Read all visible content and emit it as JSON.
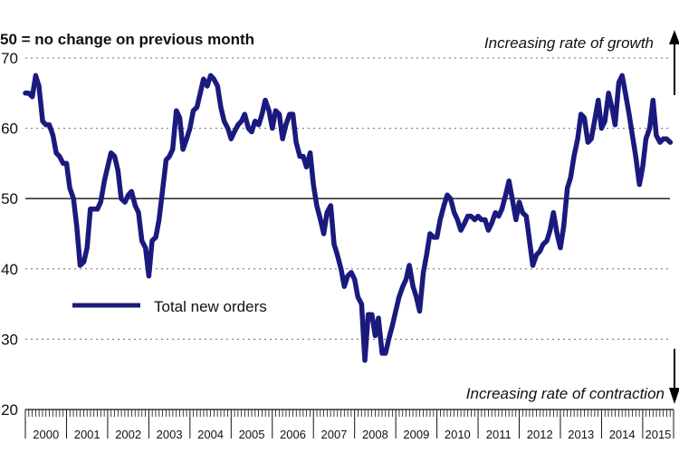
{
  "chart_data": {
    "type": "line",
    "subtitle": "50 = no change on previous month",
    "annotation_top": "Increasing rate of growth",
    "annotation_bottom": "Increasing rate of contraction",
    "ylim": [
      20,
      70
    ],
    "yticks": [
      "20",
      "30",
      "40",
      "50",
      "60",
      "70"
    ],
    "reference_line": 50,
    "xlim": [
      2000.0,
      2015.75
    ],
    "xtick_labels": [
      "2000",
      "2001",
      "2002",
      "2003",
      "2004",
      "2005",
      "2006",
      "2007",
      "2008",
      "2009",
      "2010",
      "2011",
      "2012",
      "2013",
      "2014",
      "2015"
    ],
    "grid": "horizontal dotted",
    "legend_position": "lower-left",
    "series": [
      {
        "name": "Total new orders",
        "color": "#1a1a7e",
        "x": [
          2000.0,
          2000.08,
          2000.17,
          2000.25,
          2000.33,
          2000.42,
          2000.5,
          2000.58,
          2000.67,
          2000.75,
          2000.83,
          2000.92,
          2001.0,
          2001.08,
          2001.17,
          2001.25,
          2001.33,
          2001.42,
          2001.5,
          2001.58,
          2001.67,
          2001.75,
          2001.83,
          2001.92,
          2002.0,
          2002.08,
          2002.17,
          2002.25,
          2002.33,
          2002.42,
          2002.5,
          2002.58,
          2002.67,
          2002.75,
          2002.83,
          2002.92,
          2003.0,
          2003.08,
          2003.17,
          2003.25,
          2003.33,
          2003.42,
          2003.5,
          2003.58,
          2003.67,
          2003.75,
          2003.83,
          2003.92,
          2004.0,
          2004.08,
          2004.17,
          2004.25,
          2004.33,
          2004.42,
          2004.5,
          2004.58,
          2004.67,
          2004.75,
          2004.83,
          2004.92,
          2005.0,
          2005.08,
          2005.17,
          2005.25,
          2005.33,
          2005.42,
          2005.5,
          2005.58,
          2005.67,
          2005.75,
          2005.83,
          2005.92,
          2006.0,
          2006.08,
          2006.17,
          2006.25,
          2006.33,
          2006.42,
          2006.5,
          2006.58,
          2006.67,
          2006.75,
          2006.83,
          2006.92,
          2007.0,
          2007.08,
          2007.17,
          2007.25,
          2007.33,
          2007.42,
          2007.5,
          2007.58,
          2007.67,
          2007.75,
          2007.83,
          2007.92,
          2008.0,
          2008.08,
          2008.17,
          2008.25,
          2008.33,
          2008.42,
          2008.5,
          2008.58,
          2008.67,
          2008.75,
          2008.83,
          2008.92,
          2009.0,
          2009.08,
          2009.17,
          2009.25,
          2009.33,
          2009.42,
          2009.5,
          2009.58,
          2009.67,
          2009.75,
          2009.83,
          2009.92,
          2010.0,
          2010.08,
          2010.17,
          2010.25,
          2010.33,
          2010.42,
          2010.5,
          2010.58,
          2010.67,
          2010.75,
          2010.83,
          2010.92,
          2011.0,
          2011.08,
          2011.17,
          2011.25,
          2011.33,
          2011.42,
          2011.5,
          2011.58,
          2011.67,
          2011.75,
          2011.83,
          2011.92,
          2012.0,
          2012.08,
          2012.17,
          2012.25,
          2012.33,
          2012.42,
          2012.5,
          2012.58,
          2012.67,
          2012.75,
          2012.83,
          2012.92,
          2013.0,
          2013.08,
          2013.17,
          2013.25,
          2013.33,
          2013.42,
          2013.5,
          2013.58,
          2013.67,
          2013.75,
          2013.83,
          2013.92,
          2014.0,
          2014.08,
          2014.17,
          2014.25,
          2014.33,
          2014.42,
          2014.5,
          2014.58,
          2014.67,
          2014.75,
          2014.83,
          2014.92,
          2015.0,
          2015.08,
          2015.17,
          2015.25,
          2015.33,
          2015.42,
          2015.5,
          2015.58,
          2015.67
        ],
        "values": [
          65,
          65,
          64.5,
          67.5,
          66,
          61,
          60.5,
          60.5,
          59,
          56.5,
          56,
          55,
          55,
          51.5,
          50,
          46,
          40.5,
          41,
          43,
          48.5,
          48.5,
          48.5,
          49.5,
          52.5,
          54.5,
          56.5,
          56,
          54,
          50,
          49.5,
          50.5,
          51,
          49,
          48,
          44,
          43,
          39,
          44,
          44.5,
          47,
          51,
          55.5,
          56,
          57,
          62.5,
          61.5,
          57,
          58.5,
          60,
          62.5,
          63,
          65,
          67,
          66,
          67.5,
          67,
          66,
          63,
          61,
          60,
          58.5,
          59.5,
          60.5,
          61,
          62,
          60,
          59.5,
          61,
          60.5,
          62,
          64,
          62.5,
          60,
          62.5,
          62,
          58.5,
          60.5,
          62,
          62,
          58,
          56,
          56,
          54.5,
          56.5,
          52,
          49,
          47,
          45,
          48,
          49,
          43.5,
          42,
          40,
          37.5,
          39,
          39.5,
          38.5,
          36,
          35,
          27,
          33.5,
          33.5,
          30.5,
          33,
          28,
          28,
          30,
          32,
          34,
          36,
          37.5,
          38.5,
          40.5,
          37.5,
          36,
          34,
          39.5,
          42,
          45,
          44.5,
          44.5,
          47,
          49,
          50.5,
          50,
          48,
          47,
          45.5,
          46.5,
          47.5,
          47.5,
          47,
          47.5,
          47,
          47,
          45.5,
          46.5,
          48,
          47.5,
          48.5,
          50.5,
          52.5,
          50,
          47,
          49.5,
          48,
          47.5,
          44,
          40.5,
          42,
          42.5,
          43.5,
          44,
          45.5,
          48,
          45,
          43,
          46,
          51.5,
          53,
          56,
          58.5,
          62,
          61.5,
          58,
          58.5,
          61,
          64,
          60,
          61,
          65,
          63,
          60.5,
          66.5,
          67.5,
          65,
          62,
          59,
          56,
          52,
          54.5,
          58.5,
          60,
          64,
          59,
          58,
          58.5,
          58.5,
          58
        ]
      }
    ]
  }
}
